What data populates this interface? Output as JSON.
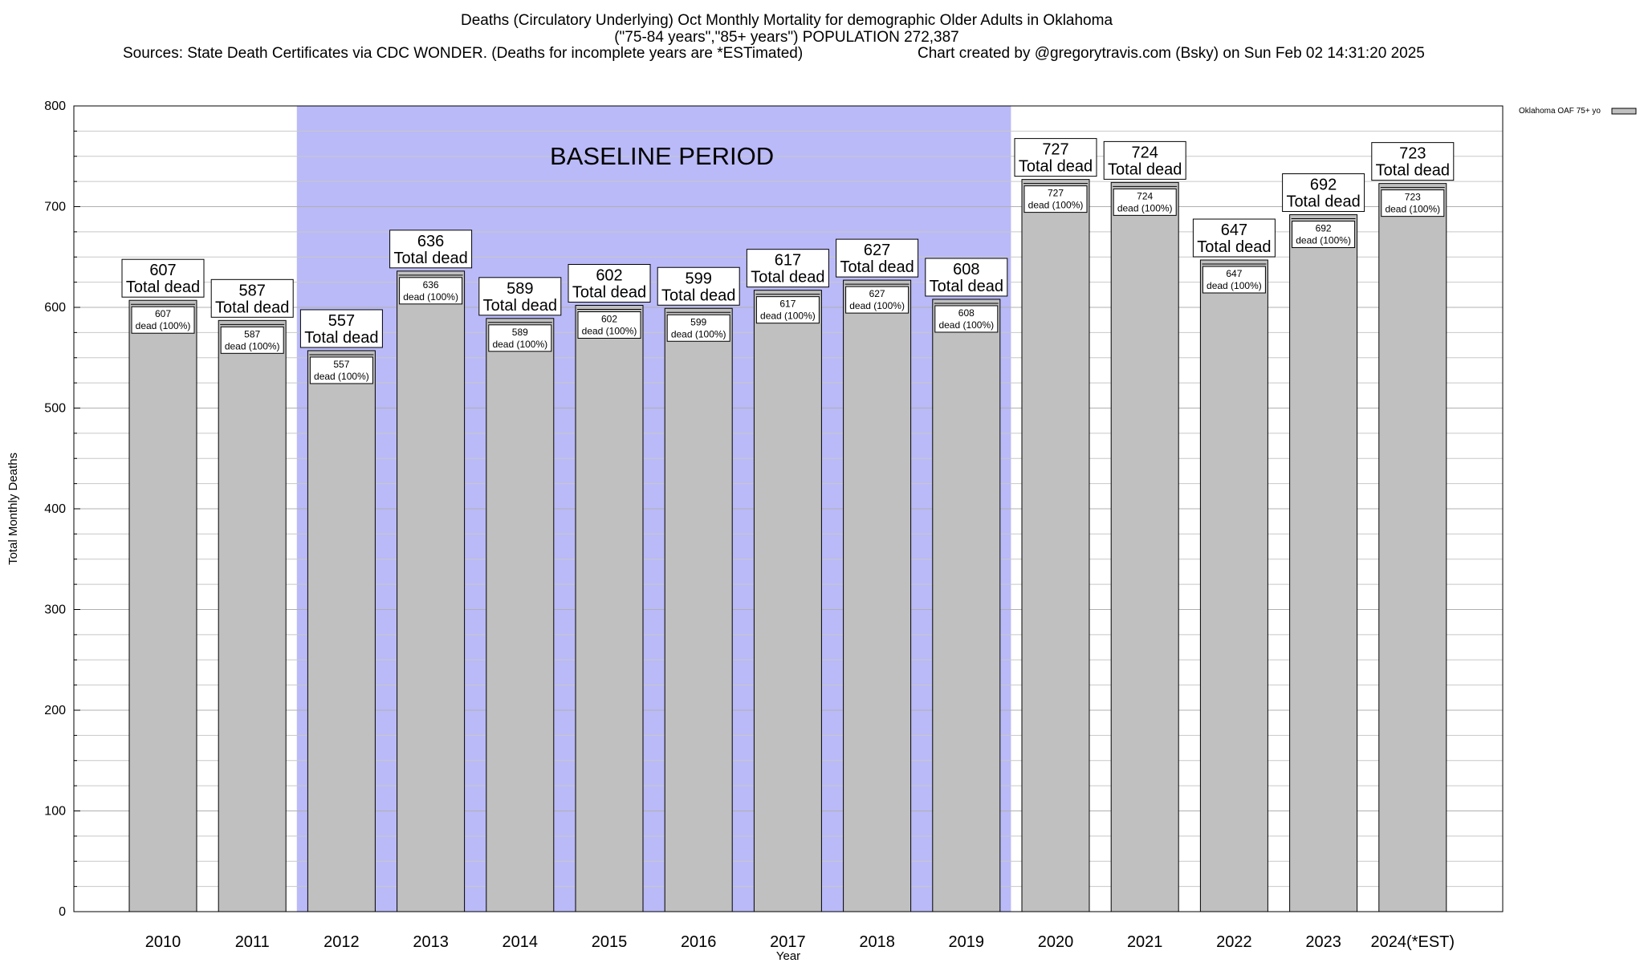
{
  "header": {
    "title_line1": "Deaths (Circulatory Underlying) Oct Monthly Mortality for demographic Older Adults in Oklahoma",
    "title_line2": "(\"75-84 years\",\"85+ years\") POPULATION 272,387",
    "sources": "Sources: State Death Certificates via CDC WONDER. (Deaths for incomplete years are *ESTimated)",
    "credit": "Chart created by @gregorytravis.com (Bsky) on Sun Feb 02 14:31:20 2025"
  },
  "colors": {
    "bar_fill": "#c0c0c0",
    "baseline_band": "#babaf8",
    "grid": "#c8c8c8"
  },
  "chart_data": {
    "type": "bar",
    "categories": [
      "2010",
      "2011",
      "2012",
      "2013",
      "2014",
      "2015",
      "2016",
      "2017",
      "2018",
      "2019",
      "2020",
      "2021",
      "2022",
      "2023",
      "2024(*EST)"
    ],
    "series": [
      {
        "name": "Oklahoma OAF 75+ yo",
        "values": [
          607,
          587,
          557,
          636,
          589,
          602,
          599,
          617,
          627,
          608,
          727,
          724,
          647,
          692,
          723
        ]
      }
    ],
    "xlabel": "Year",
    "ylabel": "Total Monthly Deaths",
    "ylim": [
      0,
      800
    ],
    "yticks": [
      0,
      100,
      200,
      300,
      400,
      500,
      600,
      700,
      800
    ],
    "grid": true,
    "legend": "top-right",
    "total_label_suffix": "Total dead",
    "inner_label_suffix": "dead (100%)",
    "baseline": {
      "label": "BASELINE PERIOD",
      "from_category": "2012",
      "to_category": "2019"
    }
  }
}
